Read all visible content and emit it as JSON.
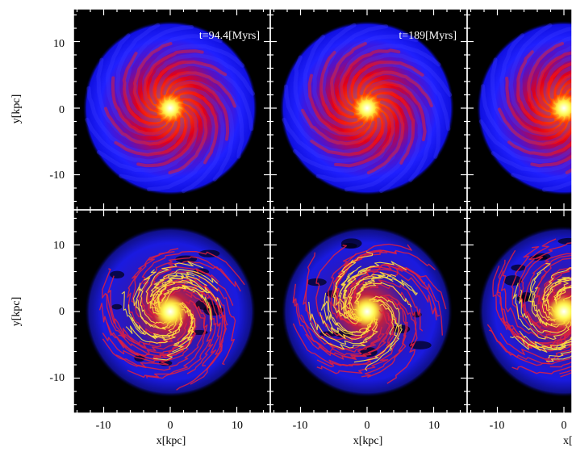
{
  "figure": {
    "panels": [
      {
        "row": 0,
        "col": 0,
        "time_label": "t=94.4[Myrs]",
        "style": "smooth"
      },
      {
        "row": 0,
        "col": 1,
        "time_label": "t=189[Myrs]",
        "style": "smooth"
      },
      {
        "row": 0,
        "col": 2,
        "time_label": "",
        "style": "smooth"
      },
      {
        "row": 1,
        "col": 0,
        "time_label": "",
        "style": "filament"
      },
      {
        "row": 1,
        "col": 1,
        "time_label": "",
        "style": "filament"
      },
      {
        "row": 1,
        "col": 2,
        "time_label": "",
        "style": "filament"
      }
    ],
    "x_axis_label": "x[kpc]",
    "y_axis_label": "y[kpc]",
    "x_tick_labels": [
      "-10",
      "0",
      "10"
    ],
    "y_tick_labels": [
      "10",
      "0",
      "-10"
    ]
  },
  "colors": {
    "background": "#000000",
    "disk_blue": "#1a1aff",
    "arm_red": "#ff1a00",
    "core_yellow": "#ffff66",
    "frame": "#ffffff"
  }
}
